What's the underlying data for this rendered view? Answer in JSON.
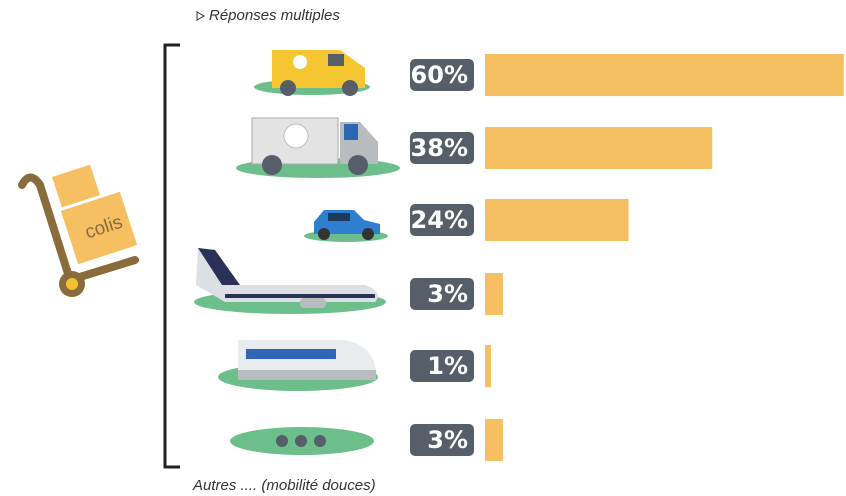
{
  "chart_data": {
    "type": "bar",
    "subtitle": "Réponses multiples",
    "icon_label": "colis",
    "categories": [
      null,
      null,
      null,
      null,
      null,
      "Autres .... (mobilité douces)"
    ],
    "values": [
      60,
      38,
      24,
      3,
      1,
      3
    ],
    "value_labels": [
      "60%",
      "38%",
      "24%",
      "3%",
      "1%",
      "3%"
    ],
    "color": "#f6bf62"
  }
}
